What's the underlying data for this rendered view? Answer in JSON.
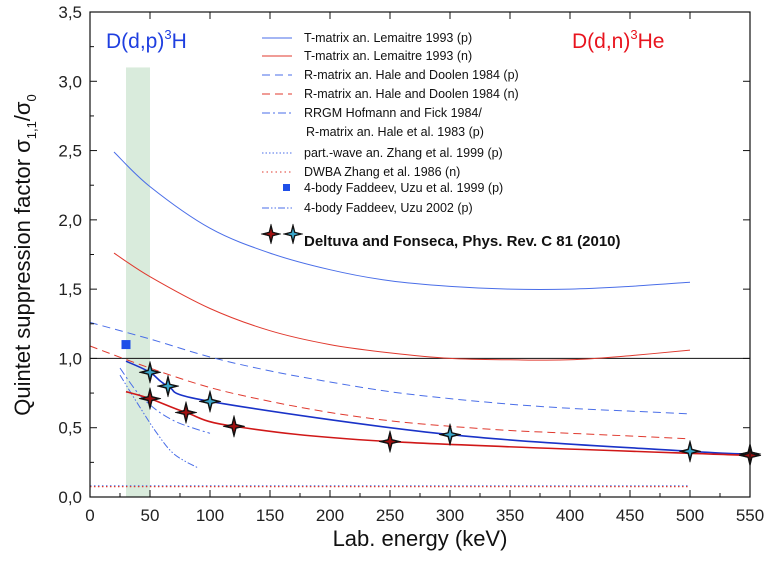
{
  "chart_data": {
    "type": "line",
    "xlabel": "Lab. energy (keV)",
    "ylabel_main": "Quintet suppression factor σ",
    "ylabel_sub": "1,1",
    "ylabel_tail": "/σ",
    "ylabel_sub2": "0",
    "xlim": [
      0,
      550
    ],
    "ylim": [
      0,
      3.5
    ],
    "x_ticks": [
      "0",
      "50",
      "100",
      "150",
      "200",
      "250",
      "300",
      "350",
      "400",
      "450",
      "500",
      "550"
    ],
    "y_ticks": [
      "0,0",
      "0,5",
      "1,0",
      "1,5",
      "2,0",
      "2,5",
      "3,0",
      "3,5"
    ],
    "reference_line_y": 1.0,
    "shaded_band": {
      "x0": 30,
      "x1": 50,
      "color": "#d9ebdc"
    },
    "corner_left": {
      "main": "D(d,p)",
      "sup": "3",
      "tail": "H",
      "color": "#1f3fe0"
    },
    "corner_right": {
      "main": "D(d,n)",
      "sup": "3",
      "tail": "He",
      "color": "#e8141e"
    },
    "series": [
      {
        "name": "T-matrix an. Lemaitre 1993 (p)",
        "color": "#4a6ee8",
        "style": "solid",
        "x": [
          20,
          50,
          100,
          150,
          200,
          250,
          300,
          350,
          400,
          450,
          500
        ],
        "y": [
          2.49,
          2.24,
          1.94,
          1.76,
          1.64,
          1.56,
          1.52,
          1.5,
          1.5,
          1.52,
          1.55
        ]
      },
      {
        "name": "T-matrix an. Lemaitre 1993 (n)",
        "color": "#e0392e",
        "style": "solid",
        "x": [
          20,
          50,
          100,
          150,
          200,
          250,
          300,
          350,
          400,
          450,
          500
        ],
        "y": [
          1.76,
          1.59,
          1.36,
          1.2,
          1.1,
          1.04,
          1.0,
          0.99,
          0.99,
          1.02,
          1.06
        ]
      },
      {
        "name": "R-matrix an. Hale and Doolen 1984 (p)",
        "color": "#4a6ee8",
        "style": "dashed",
        "x": [
          0,
          50,
          100,
          150,
          200,
          250,
          300,
          350,
          400,
          450,
          500
        ],
        "y": [
          1.26,
          1.14,
          1.01,
          0.91,
          0.83,
          0.76,
          0.71,
          0.67,
          0.64,
          0.62,
          0.6
        ]
      },
      {
        "name": "R-matrix an. Hale and Doolen 1984 (n)",
        "color": "#e0392e",
        "style": "dashed",
        "x": [
          0,
          50,
          100,
          150,
          200,
          250,
          300,
          350,
          400,
          450,
          500
        ],
        "y": [
          1.09,
          0.93,
          0.79,
          0.69,
          0.61,
          0.55,
          0.51,
          0.48,
          0.46,
          0.44,
          0.42
        ]
      },
      {
        "name": "RRGM Hofmann and Fick 1984/",
        "name2": "R-matrix an. Hale et al. 1983 (p)",
        "color": "#4a6ee8",
        "style": "dashdot",
        "x": [
          25,
          40,
          55,
          70,
          85,
          100
        ],
        "y": [
          0.93,
          0.75,
          0.63,
          0.55,
          0.5,
          0.46
        ]
      },
      {
        "name": "part.-wave an. Zhang et al. 1999 (p)",
        "color": "#4a6ee8",
        "style": "dotted",
        "x": [
          0,
          500
        ],
        "y": [
          0.08,
          0.08
        ]
      },
      {
        "name": "DWBA Zhang et al. 1986 (n)",
        "color": "#e0392e",
        "style": "dotted",
        "x": [
          0,
          500
        ],
        "y": [
          0.075,
          0.075
        ]
      },
      {
        "name": "4-body Faddeev, Uzu et al. 1999 (p)",
        "color": "#1f4fe8",
        "style": "square",
        "x": [
          30
        ],
        "y": [
          1.1
        ]
      },
      {
        "name": "4-body Faddeev, Uzu 2002 (p)",
        "color": "#4a6ee8",
        "style": "dashdotdot",
        "x": [
          25,
          40,
          55,
          70,
          90
        ],
        "y": [
          0.88,
          0.67,
          0.47,
          0.31,
          0.21
        ]
      },
      {
        "name": "Deltuva and Fonseca, Phys. Rev. C 81 (2010)",
        "color": "#1a33c8",
        "style": "star-line",
        "star_color": "#3aa6c9",
        "x": [
          30,
          50,
          65,
          100,
          300,
          500,
          550
        ],
        "y": [
          0.98,
          0.9,
          0.8,
          0.69,
          0.45,
          0.33,
          0.31
        ]
      },
      {
        "name": "Deltuva and Fonseca, Phys. Rev. C 81 (2010) (n)",
        "color": "#d01818",
        "style": "star-line",
        "star_color": "#a01010",
        "x": [
          30,
          50,
          80,
          120,
          250,
          550
        ],
        "y": [
          0.76,
          0.71,
          0.61,
          0.51,
          0.4,
          0.3
        ]
      }
    ],
    "legend": {
      "placement": "top-right",
      "labels": [
        "T-matrix an. Lemaitre 1993 (p)",
        "T-matrix an. Lemaitre 1993 (n)",
        "R-matrix an. Hale and Doolen 1984 (p)",
        "R-matrix an. Hale and Doolen 1984 (n)",
        "RRGM Hofmann and Fick 1984/",
        "R-matrix an. Hale et al. 1983 (p)",
        "part.-wave an. Zhang et al. 1999 (p)",
        "DWBA Zhang et al. 1986 (n)",
        "4-body Faddeev, Uzu et al. 1999 (p)",
        "4-body Faddeev, Uzu 2002 (p)",
        "Deltuva and Fonseca, Phys. Rev. C 81 (2010)"
      ]
    }
  }
}
